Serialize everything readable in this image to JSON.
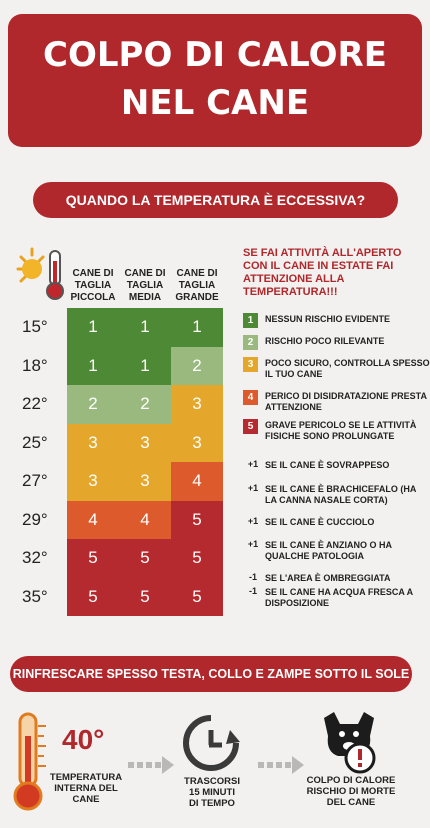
{
  "title": {
    "line1": "COLPO DI CALORE",
    "line2": "NEL CANE"
  },
  "question": "QUANDO LA TEMPERATURA È ECCESSIVA?",
  "columns": [
    {
      "l1": "CANE DI",
      "l2": "TAGLIA",
      "l3": "PICCOLA"
    },
    {
      "l1": "CANE DI",
      "l2": "TAGLIA",
      "l3": "MEDIA"
    },
    {
      "l1": "CANE DI",
      "l2": "TAGLIA",
      "l3": "GRANDE"
    }
  ],
  "temperatures": [
    "15°",
    "18°",
    "22°",
    "25°",
    "27°",
    "29°",
    "32°",
    "35°"
  ],
  "risk_table": [
    [
      1,
      1,
      1
    ],
    [
      1,
      1,
      2
    ],
    [
      2,
      2,
      3
    ],
    [
      3,
      3,
      3
    ],
    [
      3,
      3,
      4
    ],
    [
      4,
      4,
      5
    ],
    [
      5,
      5,
      5
    ],
    [
      5,
      5,
      5
    ]
  ],
  "colors": {
    "brand": "#b0272c",
    "level1": "#4e8a35",
    "level2": "#9ab97e",
    "level3": "#e5a72b",
    "level4": "#dc5a2b",
    "level5": "#b52a2f"
  },
  "legend": {
    "title": "SE FAI ATTIVITÀ ALL'APERTO CON IL CANE IN ESTATE FAI ATTENZIONE ALLA TEMPERATURA!!!",
    "levels": [
      {
        "num": "1",
        "text": "NESSUN RISCHIO EVIDENTE"
      },
      {
        "num": "2",
        "text": "RISCHIO POCO RILEVANTE"
      },
      {
        "num": "3",
        "text": "POCO SICURO, CONTROLLA SPESSO IL TUO CANE"
      },
      {
        "num": "4",
        "text": "PERICO DI DISIDRATAZIONE PRESTA ATTENZIONE"
      },
      {
        "num": "5",
        "text": "GRAVE PERICOLO SE LE ATTIVITÀ FISICHE SONO PROLUNGATE"
      }
    ],
    "modifiers": [
      {
        "sign": "+1",
        "text": "SE IL CANE È SOVRAPPESO"
      },
      {
        "sign": "+1",
        "text": "SE IL CANE È BRACHICEFALO (HA LA CANNA NASALE CORTA)"
      },
      {
        "sign": "+1",
        "text": "SE IL CANE È CUCCIOLO"
      },
      {
        "sign": "+1",
        "text": "SE IL CANE È ANZIANO O HA QUALCHE PATOLOGIA"
      },
      {
        "sign": "-1",
        "text": "SE L'AREA È OMBREGGIATA"
      },
      {
        "sign": "-1",
        "text": "SE IL CANE HA ACQUA FRESCA A DISPOSIZIONE"
      }
    ]
  },
  "banner": "RINFRESCARE SPESSO TESTA, COLLO E ZAMPE SOTTO IL SOLE",
  "bottom": {
    "temp_value": "40°",
    "step1": {
      "l1": "TEMPERATURA",
      "l2": "INTERNA DEL",
      "l3": "CANE"
    },
    "step2": {
      "l1": "TRASCORSI",
      "l2": "15 MINUTI",
      "l3": "DI TEMPO"
    },
    "step3": {
      "l1": "COLPO DI CALORE",
      "l2": "RISCHIO DI MORTE",
      "l3": "DEL CANE"
    }
  },
  "icons": [
    "sun-thermometer-icon",
    "thermometer-icon",
    "arrow-right-icon",
    "clock-icon",
    "dog-warning-icon"
  ]
}
